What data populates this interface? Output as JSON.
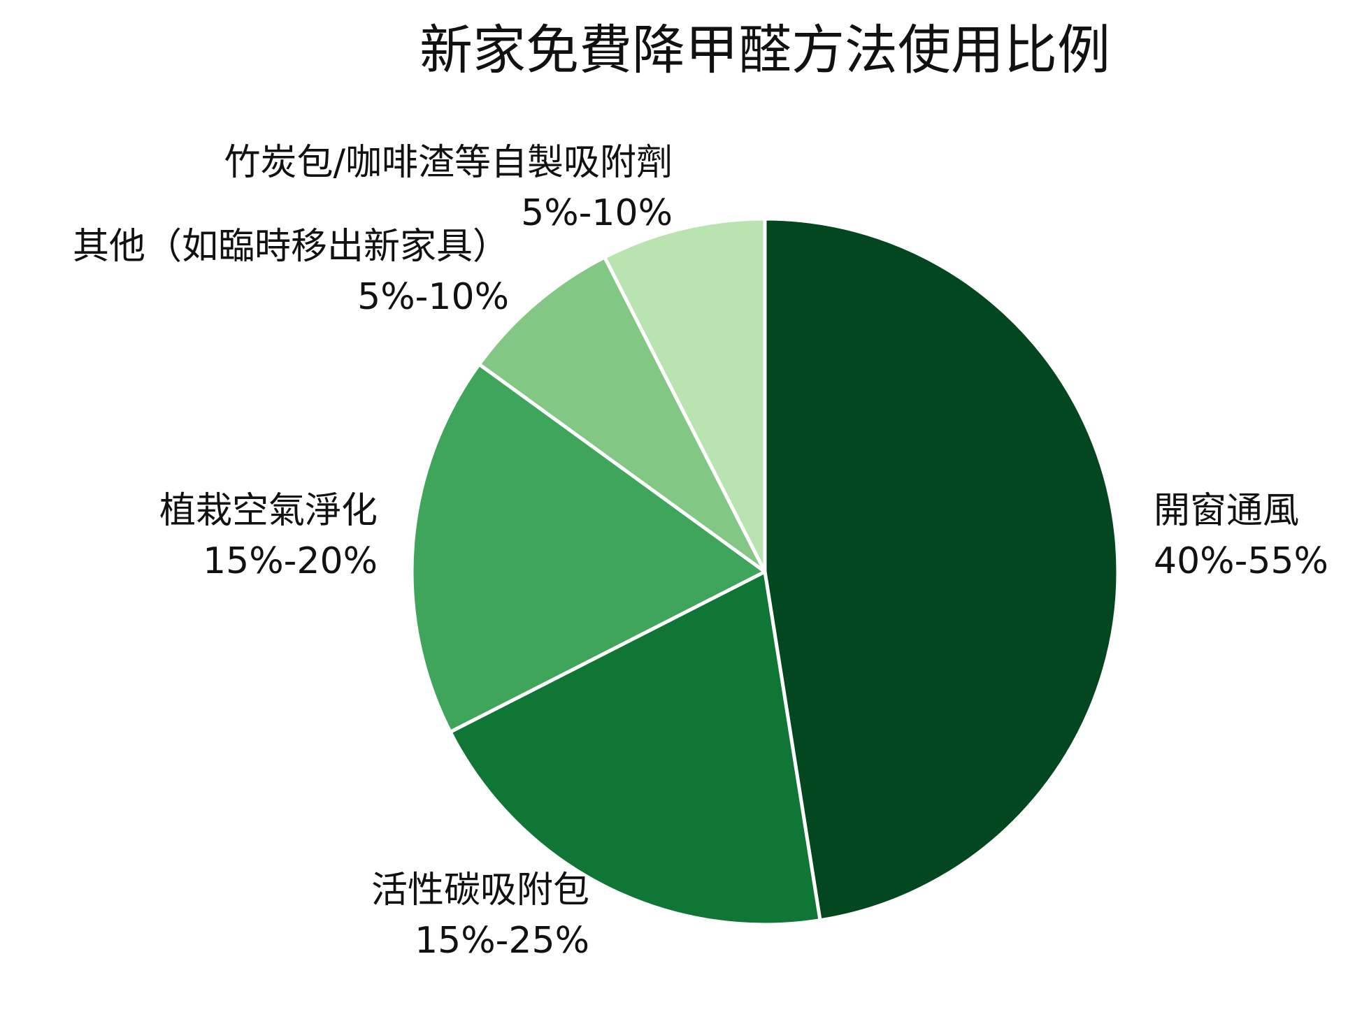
{
  "chart_data": {
    "type": "pie",
    "title": "新家免費降甲醛方法使用比例",
    "start": "12 o'clock",
    "direction": "clockwise",
    "slices": [
      {
        "name": "開窗通風",
        "range_label": "40%-55%",
        "value": 47.5,
        "color": "#02471f"
      },
      {
        "name": "活性碳吸附包",
        "range_label": "15%-25%",
        "value": 20,
        "color": "#107636"
      },
      {
        "name": "植栽空氣淨化",
        "range_label": "15%-20%",
        "value": 17.5,
        "color": "#3fa55b"
      },
      {
        "name": "其他（如臨時移出新家具）",
        "range_label": "5%-10%",
        "value": 7.5,
        "color": "#82c783"
      },
      {
        "name": "竹炭包/咖啡渣等自製吸附劑",
        "range_label": "5%-10%",
        "value": 7.5,
        "color": "#b9e3b1"
      }
    ]
  }
}
